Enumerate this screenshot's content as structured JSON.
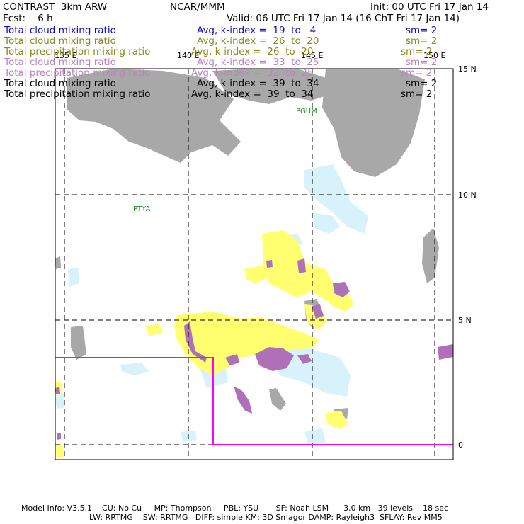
{
  "header": {
    "model": "CONTRAST  3km ARW",
    "org": "NCAR/MMM",
    "init": "Init: 00 UTC Fri 17 Jan 14",
    "fcst": "Fcst:    6 h",
    "valid": "Valid: 06 UTC Fri 17 Jan 14 (16 ChT Fri 17 Jan 14)"
  },
  "legend": [
    {
      "field": "Total cloud mixing ratio",
      "stat": "Avg, k-index =  19  to   4",
      "sm": "sm= 2",
      "color": "#1010c0"
    },
    {
      "field": "Total cloud mixing ratio",
      "stat": "Avg, k-index =  26  to  20",
      "sm": "sm= 2",
      "color": "#8a8a20"
    },
    {
      "field": "Total precipitation mixing ratio",
      "stat": "Avg, k-index =  26  to  20",
      "sm": "sm= 2",
      "color": "#8a8a20"
    },
    {
      "field": "Total cloud mixing ratio",
      "stat": "Avg, k-index =  33  to  25",
      "sm": "sm= 2",
      "color": "#c080c0"
    },
    {
      "field": "Total precipitation mixing ratio",
      "stat": "Avg, k-index =  33  to  25",
      "sm": "sm= 2",
      "color": "#c080c0"
    },
    {
      "field": "Total cloud mixing ratio",
      "stat": "Avg, k-index =  39  to  34",
      "sm": "sm= 2",
      "color": "#000000"
    },
    {
      "field": "Total precipitation mixing ratio",
      "stat": "Avg, k-index =  39  to  34",
      "sm": "sm= 2",
      "color": "#000000"
    }
  ],
  "map": {
    "lon_labels": [
      "135 E",
      "140 E",
      "145 E",
      "150 E"
    ],
    "lat_labels": [
      "15 N",
      "10 N",
      "5 N",
      "0"
    ],
    "stations": [
      "PGUM",
      "PTYA"
    ],
    "colors": {
      "upper_cloud": "#a8a8a8",
      "mid_cloud": "#ffff70",
      "low_cloud": "#d8f2fb",
      "precip": "#b070b8",
      "domain_box": "#ff00ff"
    }
  },
  "footer": {
    "line1": "Model Info: V3.5.1    CU: No Cu     MP: Thompson     PBL: YSU       SF: Noah LSM      3.0 km   39 levels    18 sec",
    "line2": "LW: RRTMG    SW: RRTMG   DIFF: simple KM: 3D Smagor DAMP: Rayleigh3  SFLAY: Rev MM5"
  }
}
